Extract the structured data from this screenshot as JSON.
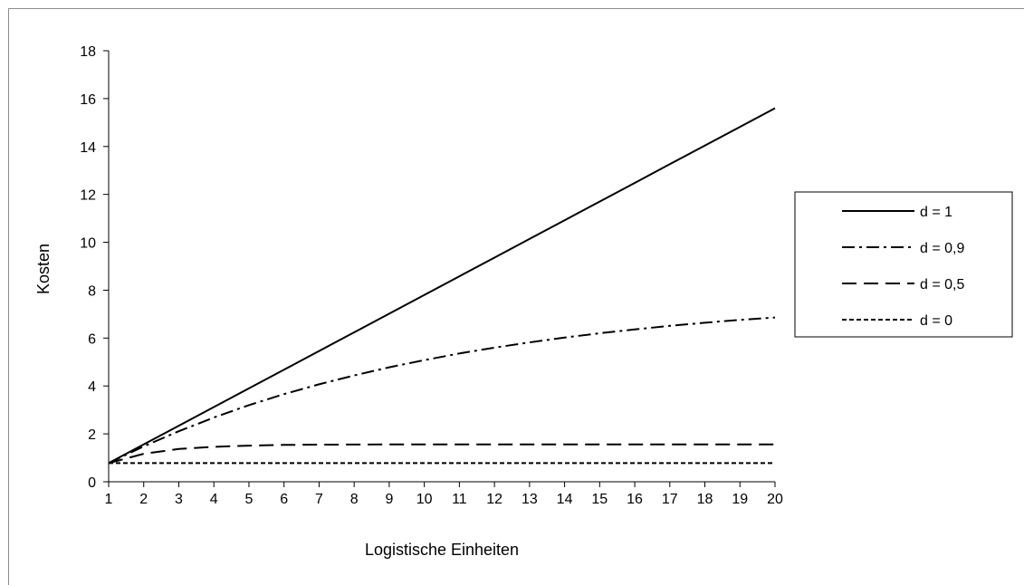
{
  "chart_data": {
    "type": "line",
    "title": "",
    "xlabel": "Logistische Einheiten",
    "ylabel": "Kosten",
    "x": [
      1,
      2,
      3,
      4,
      5,
      6,
      7,
      8,
      9,
      10,
      11,
      12,
      13,
      14,
      15,
      16,
      17,
      18,
      19,
      20
    ],
    "x_tick_labels": [
      "1",
      "2",
      "3",
      "4",
      "5",
      "6",
      "7",
      "8",
      "9",
      "10",
      "11",
      "12",
      "13",
      "14",
      "15",
      "16",
      "17",
      "18",
      "19",
      "20"
    ],
    "ylim": [
      0,
      18
    ],
    "y_ticks": [
      0,
      2,
      4,
      6,
      8,
      10,
      12,
      14,
      16,
      18
    ],
    "y_tick_labels": [
      "0",
      "2",
      "4",
      "6",
      "8",
      "10",
      "12",
      "14",
      "16",
      "18"
    ],
    "grid": false,
    "legend_position": "right",
    "series": [
      {
        "name": "d = 1",
        "dash": "solid",
        "values": [
          0.78,
          1.56,
          2.34,
          3.12,
          3.9,
          4.68,
          5.46,
          6.24,
          7.02,
          7.8,
          8.58,
          9.36,
          10.14,
          10.92,
          11.7,
          12.48,
          13.26,
          14.04,
          14.82,
          15.6
        ]
      },
      {
        "name": "d = 0,9",
        "dash": "dashdot",
        "values": [
          0.78,
          1.48,
          2.11,
          2.68,
          3.2,
          3.66,
          4.07,
          4.44,
          4.78,
          5.08,
          5.36,
          5.6,
          5.82,
          6.02,
          6.2,
          6.36,
          6.51,
          6.64,
          6.76,
          6.86
        ]
      },
      {
        "name": "d = 0,5",
        "dash": "longdash",
        "values": [
          0.78,
          1.17,
          1.37,
          1.46,
          1.51,
          1.54,
          1.55,
          1.555,
          1.56,
          1.56,
          1.56,
          1.56,
          1.56,
          1.56,
          1.56,
          1.56,
          1.56,
          1.56,
          1.56,
          1.56
        ]
      },
      {
        "name": "d = 0",
        "dash": "shortdash",
        "values": [
          0.78,
          0.78,
          0.78,
          0.78,
          0.78,
          0.78,
          0.78,
          0.78,
          0.78,
          0.78,
          0.78,
          0.78,
          0.78,
          0.78,
          0.78,
          0.78,
          0.78,
          0.78,
          0.78,
          0.78
        ]
      }
    ]
  }
}
